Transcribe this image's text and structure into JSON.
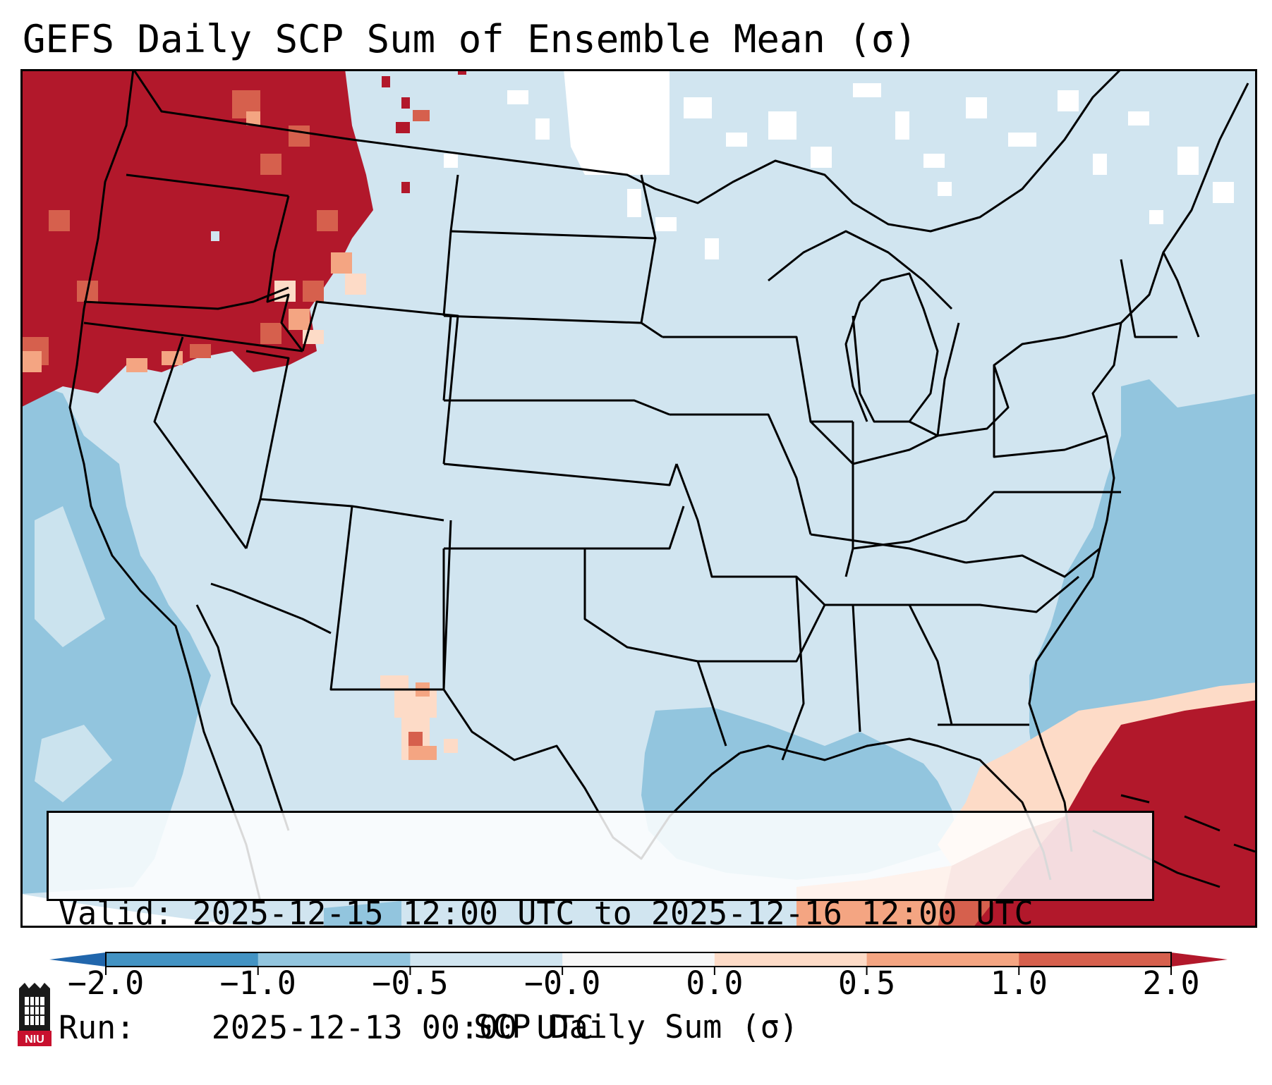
{
  "title": "GEFS Daily SCP Sum of Ensemble Mean (σ)",
  "info": {
    "valid_label": "Valid:",
    "valid_value": "2025-12-15 12:00 UTC to 2025-12-16 12:00 UTC",
    "run_label": "Run:",
    "run_value": "2025-12-13 00:00 UTC"
  },
  "colorbar": {
    "label": "SCP Daily Sum (σ)",
    "ticks": [
      "−2.0",
      "−1.0",
      "−0.5",
      "−0.0",
      "0.0",
      "0.5",
      "1.0",
      "2.0"
    ],
    "bins": [
      {
        "color": "#4393c3"
      },
      {
        "color": "#92c5de"
      },
      {
        "color": "#d1e5f0"
      },
      {
        "color": "#f7f7f7"
      },
      {
        "color": "#fddbc7"
      },
      {
        "color": "#f4a582"
      },
      {
        "color": "#d6604d"
      }
    ],
    "under_color": "#2166ac",
    "over_color": "#b2182b"
  },
  "map": {
    "region": "CONUS",
    "ocean_neutral_color": "#d1e5f0",
    "land_neutral_color": "#d1e5f0",
    "strong_positive_color": "#b2182b",
    "moderate_negative_color": "#92c5de"
  },
  "logo": {
    "text": "NIU"
  }
}
